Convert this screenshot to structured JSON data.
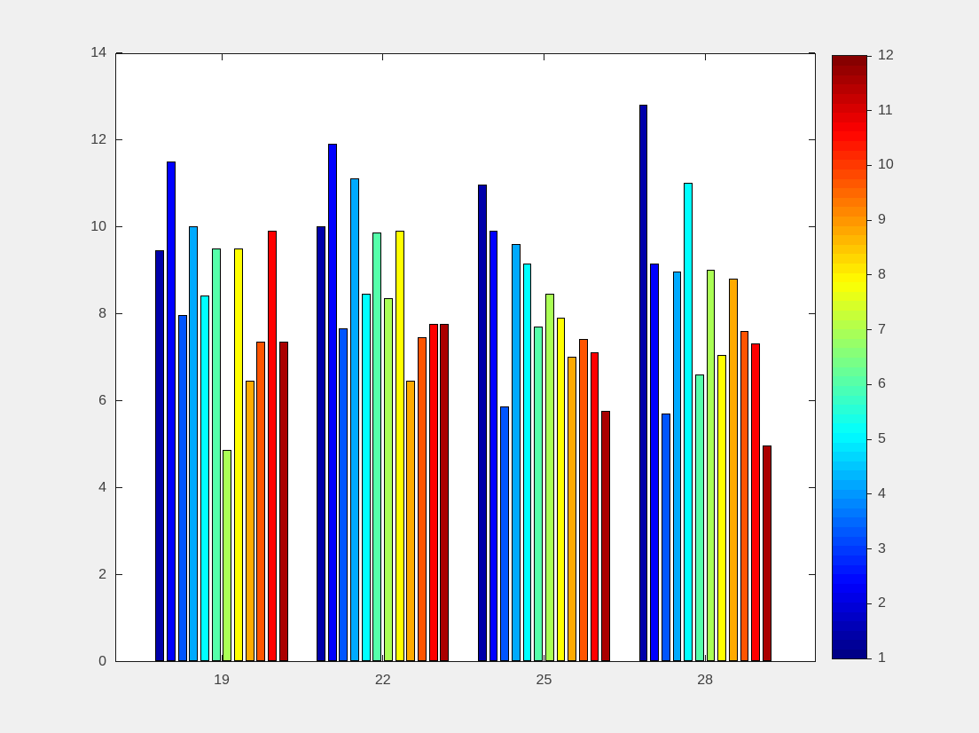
{
  "figure": {
    "background_color": "#f0f0f0",
    "plot_background_color": "#ffffff",
    "axis_color": "#1a1a1a",
    "tick_label_color": "#3f3f3f"
  },
  "chart_data": {
    "type": "bar",
    "title": "",
    "xlabel": "",
    "ylabel": "",
    "grid": false,
    "categories": [
      "19",
      "22",
      "25",
      "28"
    ],
    "x_tick_labels": [
      "19",
      "22",
      "25",
      "28"
    ],
    "y_tick_labels": [
      "0",
      "2",
      "4",
      "6",
      "8",
      "10",
      "12",
      "14"
    ],
    "yticks": [
      0,
      2,
      4,
      6,
      8,
      10,
      12,
      14
    ],
    "ylim": [
      0,
      14
    ],
    "series": [
      {
        "name": "1",
        "color": "#0000AA",
        "values": [
          9.45,
          10.0,
          10.95,
          12.8
        ]
      },
      {
        "name": "2",
        "color": "#0000FF",
        "values": [
          11.5,
          11.9,
          9.9,
          9.15
        ]
      },
      {
        "name": "3",
        "color": "#0055FF",
        "values": [
          7.95,
          7.65,
          5.85,
          5.7
        ]
      },
      {
        "name": "4",
        "color": "#00AAFF",
        "values": [
          10.0,
          11.1,
          9.6,
          8.95
        ]
      },
      {
        "name": "5",
        "color": "#00FFFF",
        "values": [
          8.4,
          8.45,
          9.15,
          11.0
        ]
      },
      {
        "name": "6",
        "color": "#55FFAA",
        "values": [
          9.5,
          9.85,
          7.7,
          6.6
        ]
      },
      {
        "name": "7",
        "color": "#AAFF55",
        "values": [
          4.85,
          8.35,
          8.45,
          9.0
        ]
      },
      {
        "name": "8",
        "color": "#FFFF00",
        "values": [
          9.5,
          9.9,
          7.9,
          7.05
        ]
      },
      {
        "name": "9",
        "color": "#FFAA00",
        "values": [
          6.45,
          6.45,
          7.0,
          8.8
        ]
      },
      {
        "name": "10",
        "color": "#FF5500",
        "values": [
          7.35,
          7.45,
          7.4,
          7.6
        ]
      },
      {
        "name": "11",
        "color": "#FF0000",
        "values": [
          9.9,
          7.75,
          7.1,
          7.3
        ]
      },
      {
        "name": "12",
        "color": "#AA0000",
        "values": [
          7.35,
          7.75,
          5.75,
          4.95
        ]
      }
    ],
    "legend_position": "colorbar-right",
    "colorbar": {
      "colormap": "jet",
      "min": 1,
      "max": 12,
      "ticks": [
        1,
        2,
        3,
        4,
        5,
        6,
        7,
        8,
        9,
        10,
        11,
        12
      ],
      "tick_labels": [
        "1",
        "2",
        "3",
        "4",
        "5",
        "6",
        "7",
        "8",
        "9",
        "10",
        "11",
        "12"
      ]
    }
  }
}
